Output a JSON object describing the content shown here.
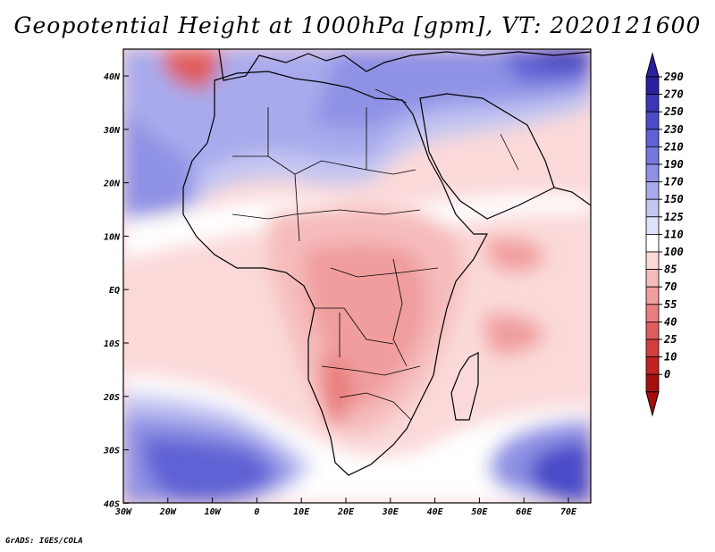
{
  "title": "Geopotential Height at 1000hPa [gpm], VT: 2020121600",
  "credit": "GrADS: IGES/COLA",
  "axes": {
    "lon_ticks": [
      "30W",
      "20W",
      "10W",
      "0",
      "10E",
      "20E",
      "30E",
      "40E",
      "50E",
      "60E",
      "70E"
    ],
    "lat_ticks": [
      "40N",
      "30N",
      "20N",
      "10N",
      "EQ",
      "10S",
      "20S",
      "30S",
      "40S"
    ]
  },
  "colorbar": {
    "labels": [
      "290",
      "270",
      "250",
      "230",
      "210",
      "190",
      "170",
      "150",
      "125",
      "110",
      "100",
      "85",
      "70",
      "55",
      "40",
      "25",
      "10",
      "0"
    ],
    "colors": [
      "#2a1f9e",
      "#3b36b5",
      "#4a4cc8",
      "#5e62d4",
      "#7678dd",
      "#8f91e5",
      "#a8aaec",
      "#c4c6f3",
      "#e0e1fa",
      "#ffffff",
      "#fbd9d9",
      "#f6bcbc",
      "#f09d9d",
      "#e97e7e",
      "#df5d5d",
      "#d53e3e",
      "#c42222",
      "#a70f0f"
    ]
  },
  "chart_data": {
    "type": "heatmap",
    "title": "Geopotential Height at 1000hPa [gpm], VT: 2020121600",
    "variable": "Geopotential Height at 1000hPa",
    "units": "gpm",
    "valid_time": "2020121600",
    "xlabel": "",
    "ylabel": "",
    "xlim": [
      -30,
      76
    ],
    "ylim": [
      -40,
      45
    ],
    "levels": [
      0,
      10,
      25,
      40,
      55,
      70,
      85,
      100,
      110,
      125,
      150,
      170,
      190,
      210,
      230,
      250,
      270,
      290
    ]
  }
}
